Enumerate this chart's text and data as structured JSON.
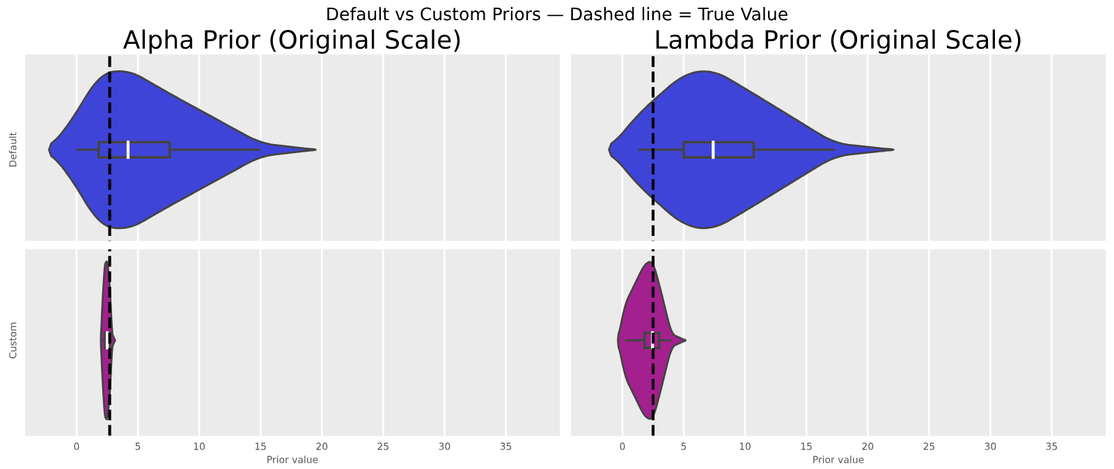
{
  "chart_data": [
    {
      "type": "box",
      "orientation": "horizontal",
      "title": "Alpha Prior (Original Scale)",
      "annotations": [
        "Default vs Custom Priors — Dashed line = True Value"
      ],
      "xlabel": "Prior value",
      "categories": [
        "Default",
        "Custom"
      ],
      "xlim": [
        -4.2,
        39.4
      ],
      "xticks": [
        0,
        5,
        10,
        15,
        20,
        25,
        30,
        35
      ],
      "grid": "x",
      "boxes": [
        {
          "low": 0,
          "q1": 1.8,
          "median": 4.2,
          "q3": 7.6,
          "high": 15.0
        },
        {
          "low": 2.1,
          "q1": 2.3,
          "median": 2.5,
          "q3": 2.7,
          "high": 2.9
        }
      ],
      "colors": [
        "#3f44d9",
        "#a4208f"
      ],
      "ref_lines": [
        {
          "axis": "x",
          "value": 2.7,
          "color": "#000000",
          "line_style": "dashed"
        }
      ]
    },
    {
      "type": "box",
      "orientation": "horizontal",
      "title": "Lambda Prior (Original Scale)",
      "xlabel": "Prior value",
      "categories": [
        null,
        null
      ],
      "xlim": [
        -4.2,
        39.4
      ],
      "xticks": [
        0,
        5,
        10,
        15,
        20,
        25,
        30,
        35
      ],
      "tick_labels": "x",
      "grid": "x",
      "boxes": [
        {
          "low": 1.3,
          "q1": 5.0,
          "median": 7.4,
          "q3": 10.7,
          "high": 17.3
        },
        {
          "low": 0.2,
          "q1": 1.8,
          "median": 2.45,
          "q3": 3.0,
          "high": 4.0
        }
      ],
      "colors": [
        "#3f44d9",
        "#a4208f"
      ],
      "ref_lines": [
        {
          "axis": "x",
          "value": 2.5,
          "color": "#000000",
          "line_style": "dashed"
        }
      ]
    }
  ]
}
